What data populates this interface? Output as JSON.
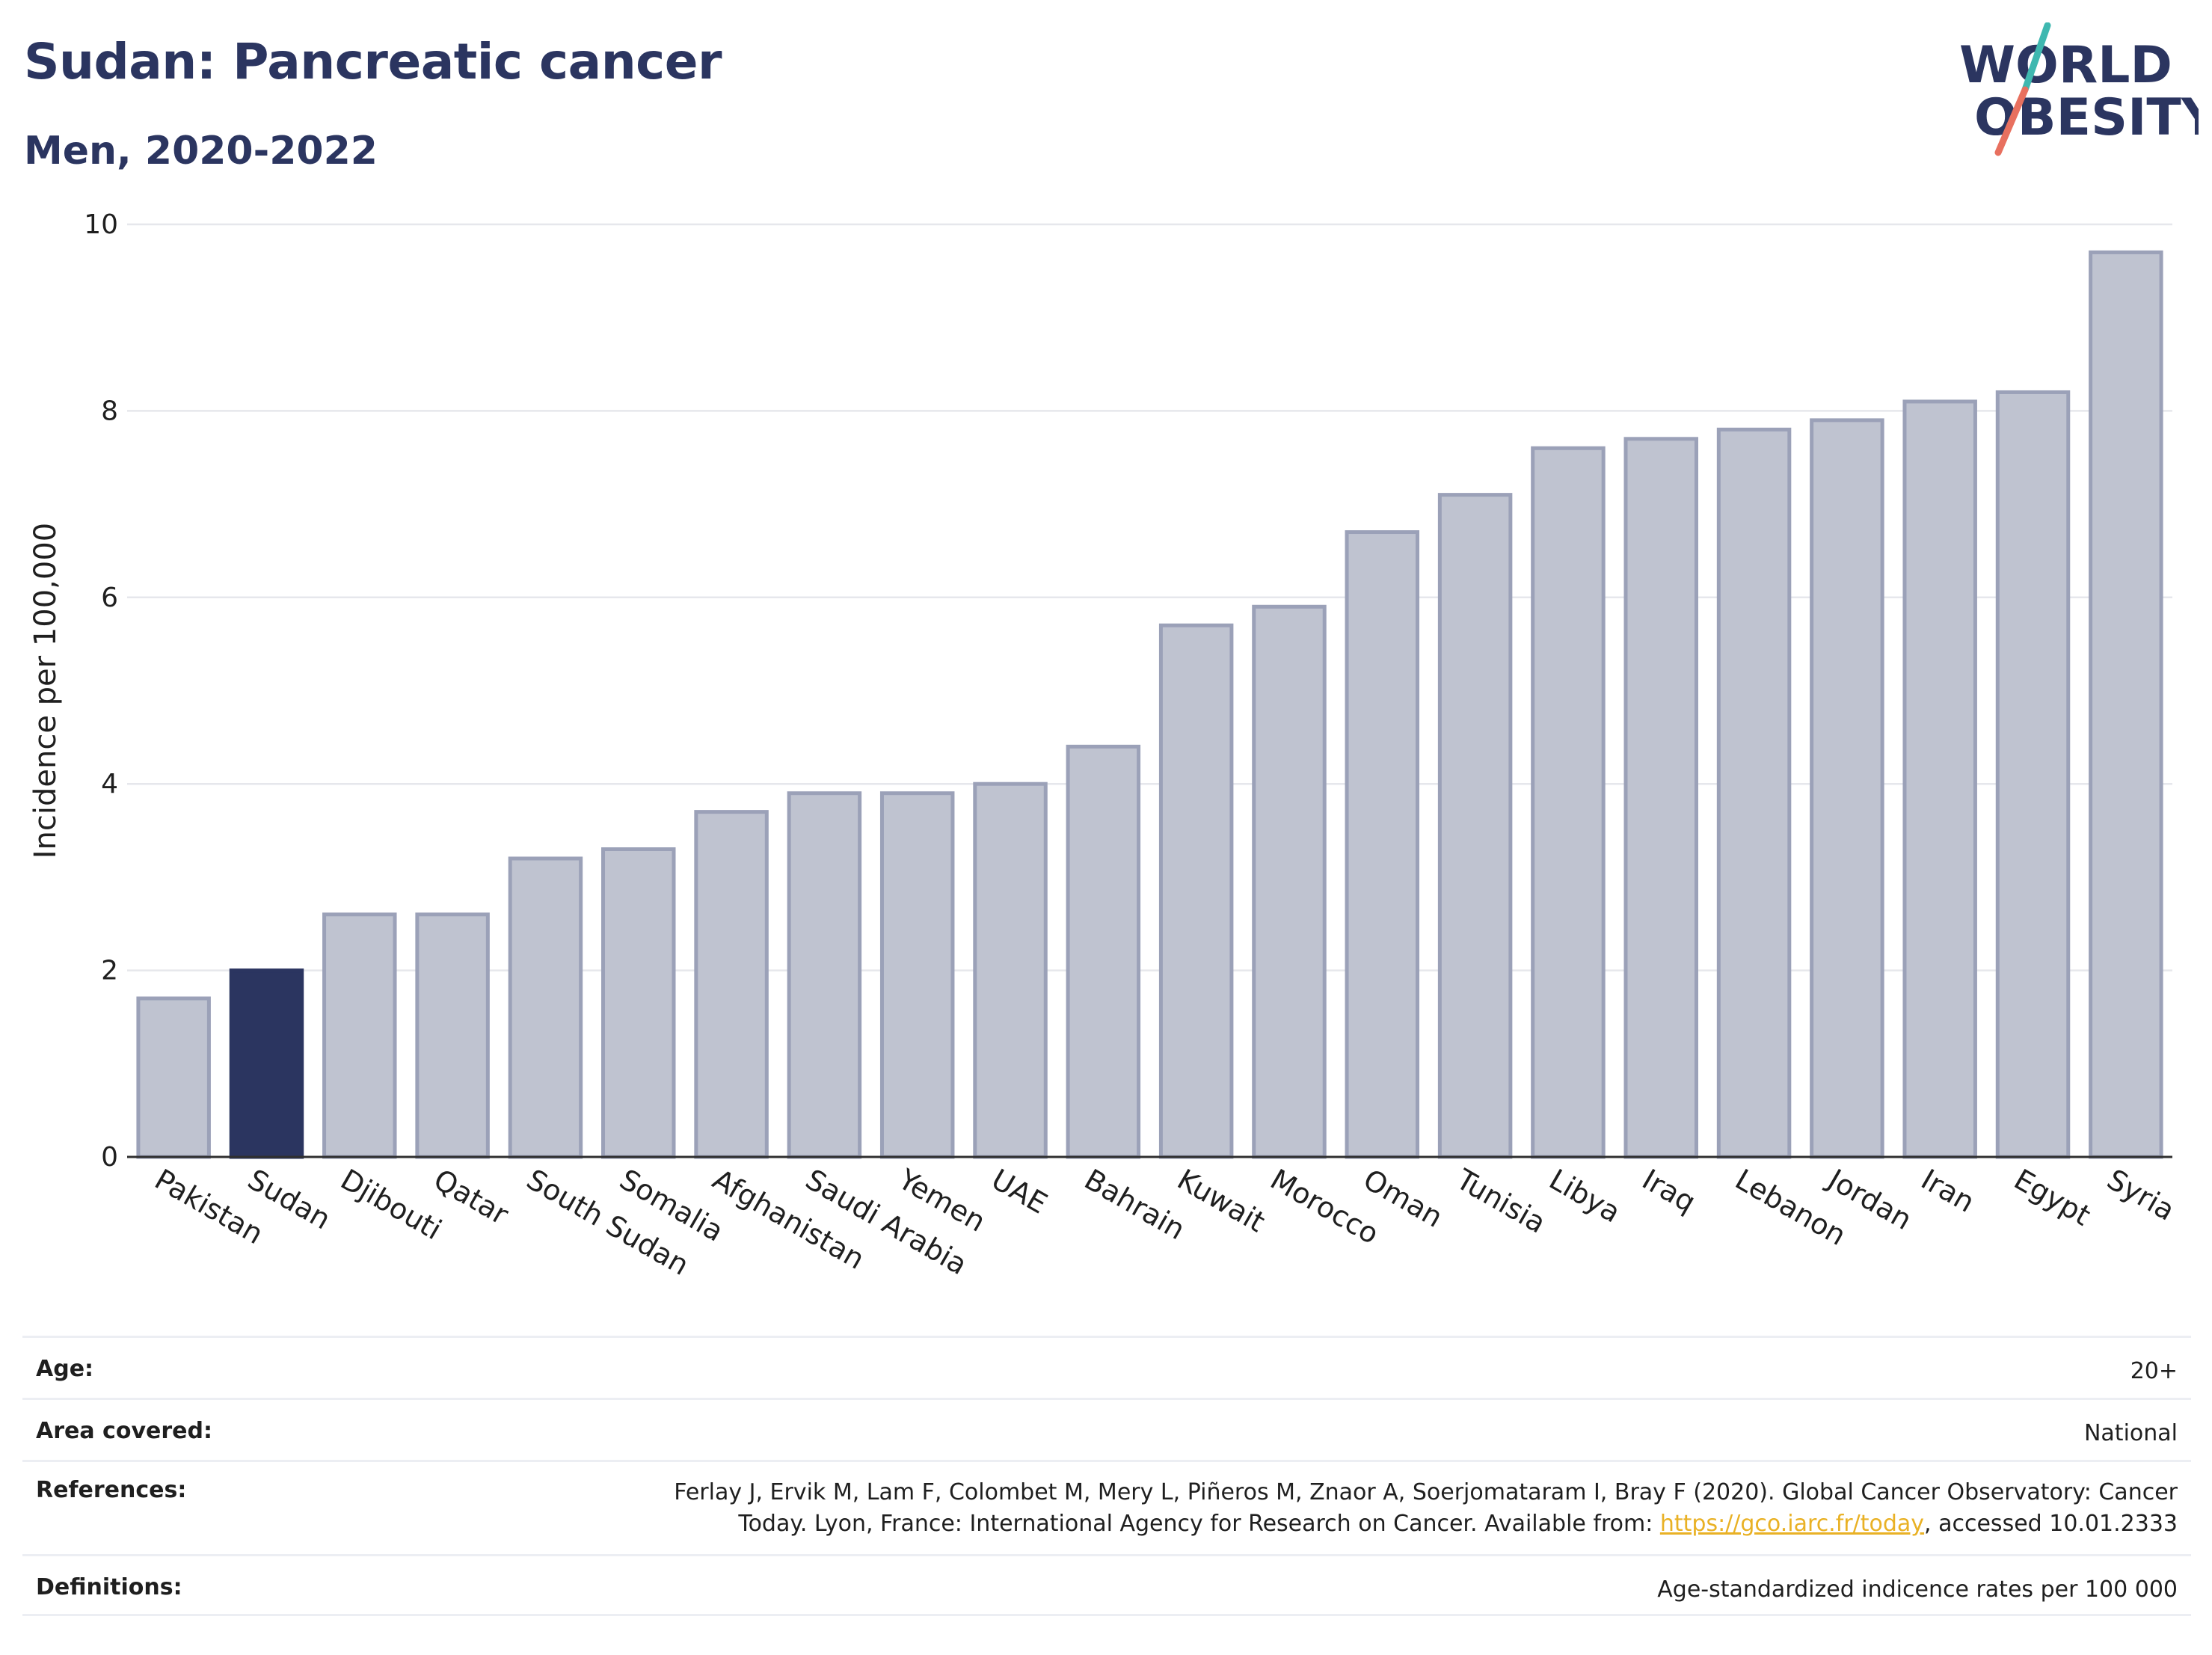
{
  "header": {
    "title": "Sudan: Pancreatic cancer",
    "subtitle": "Men, 2020-2022"
  },
  "logo": {
    "line1": "WORLD",
    "line2": "OBESITY"
  },
  "colors": {
    "highlight": "#2b3560",
    "bar_fill": "#bfc3d0",
    "bar_stroke": "#9ba1b8",
    "grid": "#e6e7ec",
    "logo_teal": "#3fb8b0",
    "logo_coral": "#e8705f",
    "link": "#e9b125"
  },
  "chart_data": {
    "type": "bar",
    "title": "Sudan: Pancreatic cancer",
    "subtitle": "Men, 2020-2022",
    "xlabel": "",
    "ylabel": "Incidence per 100,000",
    "ylim": [
      0,
      10
    ],
    "yticks": [
      0,
      2,
      4,
      6,
      8,
      10
    ],
    "grid": true,
    "highlight": "Sudan",
    "categories": [
      "Pakistan",
      "Sudan",
      "Djibouti",
      "Qatar",
      "South Sudan",
      "Somalia",
      "Afghanistan",
      "Saudi Arabia",
      "Yemen",
      "UAE",
      "Bahrain",
      "Kuwait",
      "Morocco",
      "Oman",
      "Tunisia",
      "Libya",
      "Iraq",
      "Lebanon",
      "Jordan",
      "Iran",
      "Egypt",
      "Syria"
    ],
    "values": [
      1.7,
      2.0,
      2.6,
      2.6,
      3.2,
      3.3,
      3.7,
      3.9,
      3.9,
      4.0,
      4.4,
      5.7,
      5.9,
      6.7,
      7.1,
      7.6,
      7.7,
      7.8,
      7.9,
      8.1,
      8.2,
      9.7
    ]
  },
  "meta": {
    "age_label": "Age:",
    "age_value": "20+",
    "area_label": "Area covered:",
    "area_value": "National",
    "references_label": "References:",
    "references_text_1": "Ferlay J, Ervik M, Lam F, Colombet M, Mery L, Piñeros M, Znaor A, Soerjomataram I, Bray F (2020). Global Cancer Observatory: Cancer",
    "references_text_2": "Today. Lyon, France: International Agency for Research on Cancer. Available from: ",
    "references_link": "https://gco.iarc.fr/today",
    "references_text_3": ", accessed 10.01.2333",
    "definitions_label": "Definitions:",
    "definitions_value": "Age-standardized indicence rates per 100 000"
  }
}
